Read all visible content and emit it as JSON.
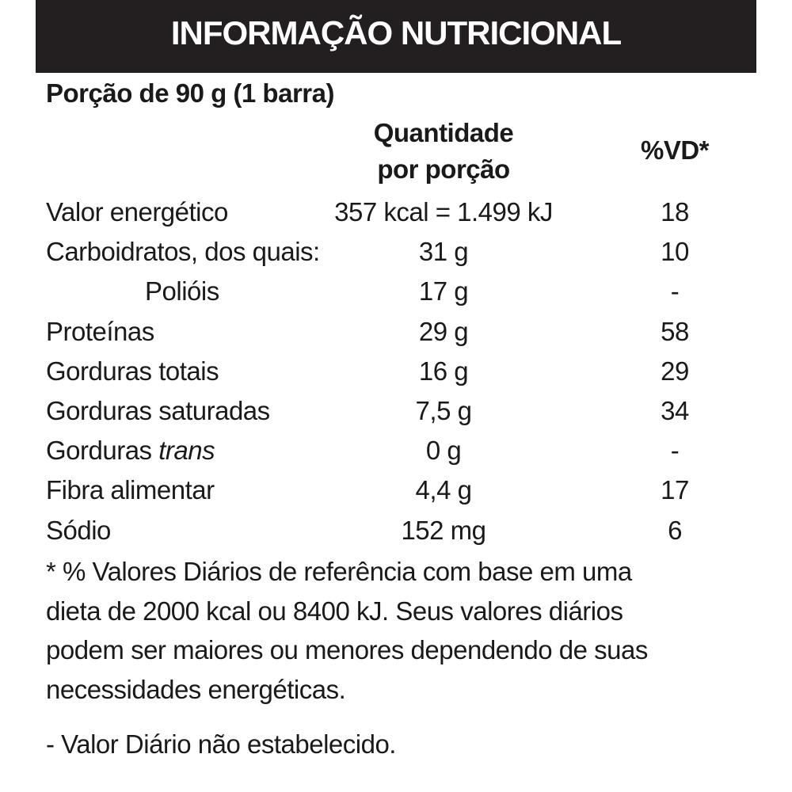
{
  "header": {
    "title": "INFORMAÇÃO NUTRICIONAL"
  },
  "serving": "Porção de 90 g (1 barra)",
  "table": {
    "columns": {
      "amount": [
        "Quantidade",
        "por porção"
      ],
      "dv": "%VD*"
    },
    "rows": [
      {
        "label": "Valor energético",
        "amount": "357 kcal = 1.499 kJ",
        "dv": "18"
      },
      {
        "label": "Carboidratos, dos quais:",
        "amount": "31 g",
        "dv": "10"
      },
      {
        "label": "Polióis",
        "amount": "17 g",
        "dv": "-",
        "indent": true
      },
      {
        "label": "Proteínas",
        "amount": "29 g",
        "dv": "58"
      },
      {
        "label": "Gorduras totais",
        "amount": "16 g",
        "dv": "29"
      },
      {
        "label": "Gorduras saturadas",
        "amount": "7,5 g",
        "dv": "34"
      },
      {
        "label": "Gorduras",
        "label_italic": "trans",
        "amount": "0 g",
        "dv": "-"
      },
      {
        "label": "Fibra alimentar",
        "amount": "4,4 g",
        "dv": "17"
      },
      {
        "label": "Sódio",
        "amount": "152 mg",
        "dv": "6"
      }
    ]
  },
  "footnote": [
    "* % Valores Diários de referência com base em uma",
    "dieta de 2000 kcal ou 8400 kJ. Seus valores diários",
    "podem ser maiores ou menores dependendo de suas",
    "necessidades energéticas."
  ],
  "note": "- Valor Diário não estabelecido."
}
